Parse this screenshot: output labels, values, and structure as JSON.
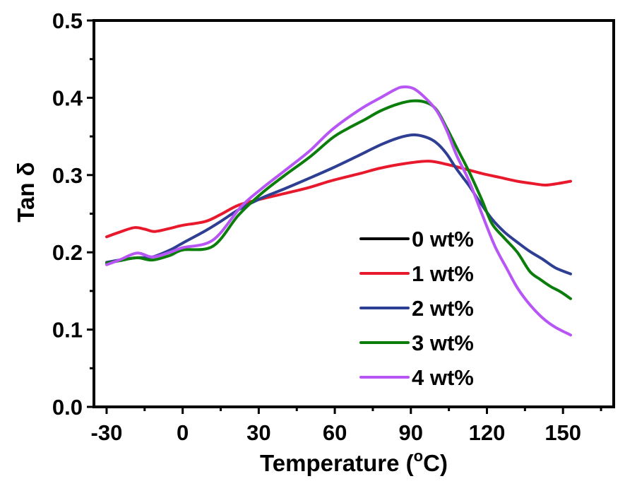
{
  "chart_data": {
    "type": "line",
    "title": "",
    "xlabel": "Temperature (",
    "xlabel_sup": "o",
    "xlabel_unit": "C)",
    "ylabel": "Tan δ",
    "xlim": [
      -35,
      170
    ],
    "ylim": [
      0.0,
      0.5
    ],
    "xticks": [
      -30,
      0,
      30,
      60,
      90,
      120,
      150
    ],
    "xtick_labels": [
      "-30",
      "0",
      "30",
      "60",
      "90",
      "120",
      "150"
    ],
    "xminor": [
      -15,
      15,
      45,
      75,
      105,
      135,
      165
    ],
    "yticks": [
      0.0,
      0.1,
      0.2,
      0.3,
      0.4,
      0.5
    ],
    "ytick_labels": [
      "0.0",
      "0.1",
      "0.2",
      "0.3",
      "0.4",
      "0.5"
    ],
    "yminor": [
      0.05,
      0.15,
      0.25,
      0.35,
      0.45
    ],
    "grid": false,
    "legend_position": "lower-right",
    "series": [
      {
        "name": "0 wt%",
        "color": "#000000",
        "x": [],
        "y": []
      },
      {
        "name": "1 wt%",
        "color": "#e8192c",
        "x": [
          -30,
          -25,
          -19,
          -15,
          -11,
          -5,
          0,
          9,
          15,
          22,
          31,
          40,
          50,
          59,
          70,
          78,
          88,
          97,
          104,
          110,
          118,
          125,
          132,
          138,
          143,
          148,
          153
        ],
        "y": [
          0.22,
          0.226,
          0.232,
          0.23,
          0.227,
          0.231,
          0.235,
          0.24,
          0.249,
          0.261,
          0.269,
          0.276,
          0.284,
          0.293,
          0.302,
          0.309,
          0.315,
          0.318,
          0.314,
          0.309,
          0.302,
          0.297,
          0.292,
          0.289,
          0.287,
          0.289,
          0.292
        ]
      },
      {
        "name": "2 wt%",
        "color": "#2e3f93",
        "x": [
          -30,
          -25,
          -18,
          -12,
          -5,
          0,
          9,
          15,
          22,
          31,
          40,
          50,
          59,
          68,
          78,
          85,
          91,
          96,
          100,
          104,
          108,
          113,
          117,
          122,
          127,
          132,
          137,
          142,
          147,
          153
        ],
        "y": [
          0.187,
          0.19,
          0.193,
          0.194,
          0.203,
          0.212,
          0.228,
          0.24,
          0.255,
          0.27,
          0.282,
          0.296,
          0.309,
          0.323,
          0.339,
          0.348,
          0.352,
          0.349,
          0.342,
          0.328,
          0.308,
          0.286,
          0.266,
          0.243,
          0.226,
          0.213,
          0.201,
          0.191,
          0.18,
          0.172
        ]
      },
      {
        "name": "3 wt%",
        "color": "#0b7d0b",
        "x": [
          -30,
          -25,
          -18,
          -12,
          -5,
          0,
          12,
          22,
          31,
          40,
          50,
          59,
          65,
          72,
          78,
          85,
          91,
          96,
          100,
          104,
          108,
          113,
          118,
          122,
          127,
          132,
          137,
          141,
          145,
          149,
          153
        ],
        "y": [
          0.186,
          0.189,
          0.193,
          0.19,
          0.196,
          0.203,
          0.208,
          0.248,
          0.276,
          0.299,
          0.323,
          0.348,
          0.36,
          0.372,
          0.383,
          0.392,
          0.396,
          0.394,
          0.385,
          0.362,
          0.336,
          0.304,
          0.268,
          0.237,
          0.218,
          0.2,
          0.175,
          0.165,
          0.156,
          0.149,
          0.14
        ]
      },
      {
        "name": "4 wt%",
        "color": "#b855f5",
        "x": [
          -30,
          -25,
          -18,
          -12,
          -5,
          0,
          12,
          23,
          31,
          40,
          50,
          59,
          70,
          78,
          84,
          87,
          91,
          95,
          100,
          104,
          108,
          113,
          118,
          123,
          128,
          132,
          137,
          142,
          147,
          153
        ],
        "y": [
          0.184,
          0.19,
          0.199,
          0.194,
          0.2,
          0.206,
          0.216,
          0.259,
          0.282,
          0.305,
          0.331,
          0.359,
          0.385,
          0.4,
          0.411,
          0.414,
          0.412,
          0.402,
          0.384,
          0.359,
          0.326,
          0.292,
          0.25,
          0.209,
          0.178,
          0.154,
          0.132,
          0.115,
          0.103,
          0.093
        ]
      }
    ]
  }
}
